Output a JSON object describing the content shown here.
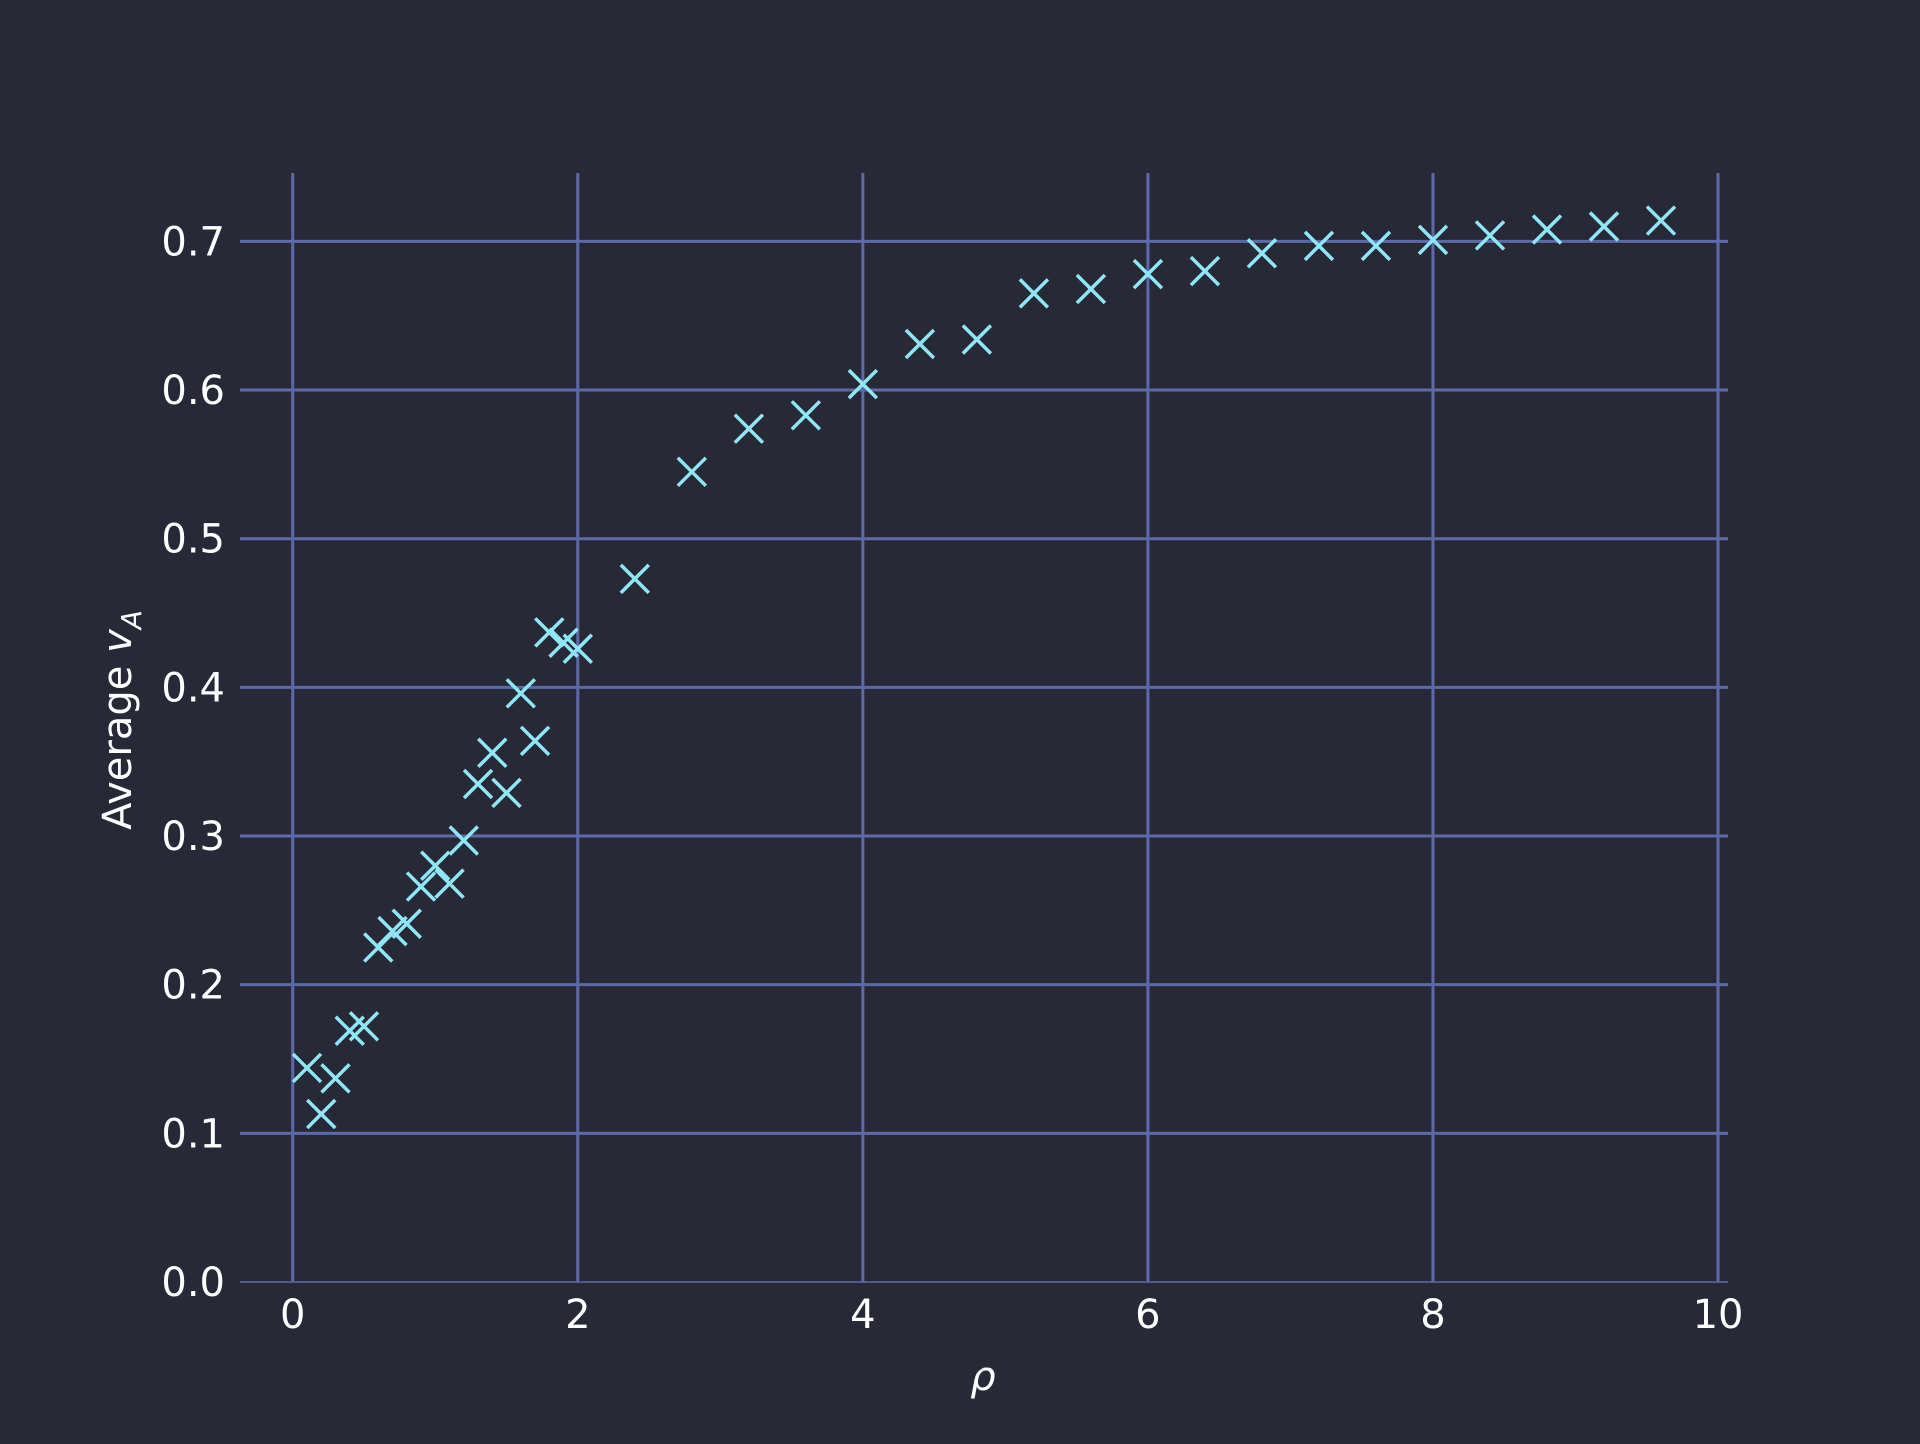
{
  "chart_data": {
    "type": "scatter",
    "xlabel": "ρ",
    "ylabel_prefix": "Average ",
    "ylabel_var": "v",
    "ylabel_sub": "A",
    "xlim": [
      -0.37,
      10.07
    ],
    "ylim": [
      0.0,
      0.746
    ],
    "xticks": [
      0,
      2,
      4,
      6,
      8,
      10
    ],
    "xtick_labels": [
      "0",
      "2",
      "4",
      "6",
      "8",
      "10"
    ],
    "yticks": [
      0.0,
      0.1,
      0.2,
      0.3,
      0.4,
      0.5,
      0.6,
      0.7
    ],
    "ytick_labels": [
      "0.0",
      "0.1",
      "0.2",
      "0.3",
      "0.4",
      "0.5",
      "0.6",
      "0.7"
    ],
    "grid": true,
    "marker": "x",
    "colors": {
      "background": "#272a36",
      "grid": "#5c6ba8",
      "marker": "#8ee6f7",
      "text": "#ffffff"
    },
    "series": [
      {
        "points": [
          [
            0.1,
            0.144
          ],
          [
            0.2,
            0.113
          ],
          [
            0.3,
            0.137
          ],
          [
            0.4,
            0.169
          ],
          [
            0.5,
            0.172
          ],
          [
            0.6,
            0.225
          ],
          [
            0.7,
            0.236
          ],
          [
            0.8,
            0.241
          ],
          [
            0.9,
            0.266
          ],
          [
            1.0,
            0.28
          ],
          [
            1.1,
            0.268
          ],
          [
            1.2,
            0.297
          ],
          [
            1.3,
            0.335
          ],
          [
            1.4,
            0.356
          ],
          [
            1.5,
            0.329
          ],
          [
            1.6,
            0.396
          ],
          [
            1.7,
            0.364
          ],
          [
            1.8,
            0.437
          ],
          [
            1.9,
            0.43
          ],
          [
            2.0,
            0.426
          ],
          [
            2.4,
            0.473
          ],
          [
            2.8,
            0.545
          ],
          [
            3.2,
            0.574
          ],
          [
            3.6,
            0.583
          ],
          [
            4.0,
            0.604
          ],
          [
            4.4,
            0.631
          ],
          [
            4.8,
            0.634
          ],
          [
            5.2,
            0.665
          ],
          [
            5.6,
            0.668
          ],
          [
            6.0,
            0.678
          ],
          [
            6.4,
            0.68
          ],
          [
            6.8,
            0.692
          ],
          [
            7.2,
            0.697
          ],
          [
            7.6,
            0.697
          ],
          [
            8.0,
            0.701
          ],
          [
            8.4,
            0.704
          ],
          [
            8.8,
            0.708
          ],
          [
            9.2,
            0.71
          ],
          [
            9.6,
            0.714
          ]
        ]
      }
    ]
  }
}
